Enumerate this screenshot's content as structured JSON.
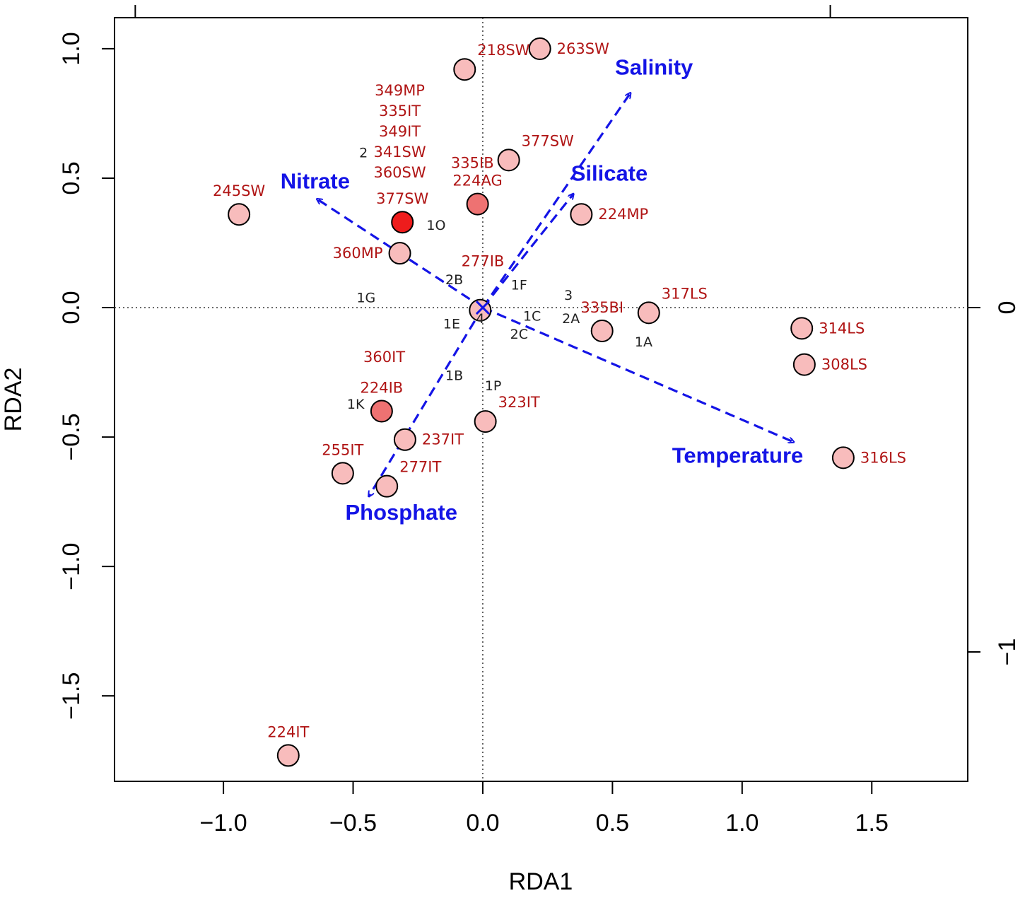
{
  "chart_data": {
    "type": "scatter",
    "subtype": "RDA triplot",
    "xlabel": "RDA1",
    "ylabel": "RDA2",
    "xlim": [
      -1.42,
      1.87
    ],
    "ylim": [
      -1.83,
      1.12
    ],
    "x_ticks": [
      -1.0,
      -0.5,
      0.0,
      0.5,
      1.0,
      1.5
    ],
    "x_tick_labels": [
      "−1.0",
      "−0.5",
      "0.0",
      "0.5",
      "1.0",
      "1.5"
    ],
    "y_ticks": [
      1.0,
      0.5,
      0.0,
      -0.5,
      -1.0,
      -1.5
    ],
    "y_tick_labels": [
      "1.0",
      "0.5",
      "0.0",
      "−0.5",
      "−1.0",
      "−1.5"
    ],
    "right_axis": {
      "ticks": [
        0.0,
        -1.33
      ],
      "tick_labels": [
        "0",
        "−1"
      ]
    },
    "top_axis_ticks": [
      -1.34,
      1.34
    ],
    "reference_lines": {
      "x": 0,
      "y": 0,
      "style": "dotted"
    },
    "origin_marker": "x",
    "sites": [
      {
        "label": "263SW",
        "x": 0.22,
        "y": 1.0,
        "fill": "#f8bcbc",
        "lab": "r"
      },
      {
        "label": "218SW",
        "x": -0.07,
        "y": 0.92,
        "fill": "#f8bcbc",
        "lab": "ur"
      },
      {
        "label": "377SW",
        "x": 0.1,
        "y": 0.57,
        "fill": "#f8bcbc",
        "lab": "ur"
      },
      {
        "label": "224AG",
        "x": -0.02,
        "y": 0.4,
        "fill": "#ee7272",
        "lab": "u"
      },
      {
        "label": "224MP",
        "x": 0.38,
        "y": 0.36,
        "fill": "#f8bcbc",
        "lab": "r"
      },
      {
        "label": "245SW",
        "x": -0.94,
        "y": 0.36,
        "fill": "#f8bcbc",
        "lab": "u"
      },
      {
        "label": "377SW",
        "x": -0.31,
        "y": 0.33,
        "fill": "#ee1c1c",
        "lab": "u"
      },
      {
        "label": "360MP",
        "x": -0.32,
        "y": 0.21,
        "fill": "#f8bcbc",
        "lab": "l"
      },
      {
        "label": "",
        "x": -0.01,
        "y": -0.01,
        "fill": "#f8bcbc",
        "lab": "n"
      },
      {
        "label": "317LS",
        "x": 0.64,
        "y": -0.02,
        "fill": "#f8bcbc",
        "lab": "ur"
      },
      {
        "label": "335BI",
        "x": 0.46,
        "y": -0.09,
        "fill": "#f8bcbc",
        "lab": "u"
      },
      {
        "label": "314LS",
        "x": 1.23,
        "y": -0.08,
        "fill": "#f8bcbc",
        "lab": "r"
      },
      {
        "label": "308LS",
        "x": 1.24,
        "y": -0.22,
        "fill": "#f8bcbc",
        "lab": "r"
      },
      {
        "label": "224IB",
        "x": -0.39,
        "y": -0.4,
        "fill": "#ee7272",
        "lab": "u"
      },
      {
        "label": "323IT",
        "x": 0.01,
        "y": -0.44,
        "fill": "#f8bcbc",
        "lab": "ur"
      },
      {
        "label": "237IT",
        "x": -0.3,
        "y": -0.51,
        "fill": "#f8bcbc",
        "lab": "r"
      },
      {
        "label": "316LS",
        "x": 1.39,
        "y": -0.58,
        "fill": "#f8bcbc",
        "lab": "r"
      },
      {
        "label": "255IT",
        "x": -0.54,
        "y": -0.64,
        "fill": "#f8bcbc",
        "lab": "u"
      },
      {
        "label": "277IT",
        "x": -0.37,
        "y": -0.69,
        "fill": "#f8bcbc",
        "lab": "ur"
      },
      {
        "label": "224IT",
        "x": -0.75,
        "y": -1.73,
        "fill": "#f8bcbc",
        "lab": "u"
      }
    ],
    "stacked_site_labels": {
      "x": -0.32,
      "y_top": 0.82,
      "labels": [
        "349MP",
        "335IT",
        "349IT",
        "341SW",
        "360SW"
      ]
    },
    "extra_site_labels": [
      {
        "label": "335IB",
        "x": -0.04,
        "y": 0.54
      },
      {
        "label": "277IB",
        "x": 0.0,
        "y": 0.16
      },
      {
        "label": "360IT",
        "x": -0.38,
        "y": -0.21
      }
    ],
    "species": [
      {
        "label": "2",
        "x": -0.46,
        "y": 0.58
      },
      {
        "label": "1O",
        "x": -0.18,
        "y": 0.3
      },
      {
        "label": "2B",
        "x": -0.11,
        "y": 0.09
      },
      {
        "label": "1F",
        "x": 0.14,
        "y": 0.07
      },
      {
        "label": "3",
        "x": 0.33,
        "y": 0.03
      },
      {
        "label": "1G",
        "x": -0.45,
        "y": 0.02
      },
      {
        "label": "1C",
        "x": 0.19,
        "y": -0.05
      },
      {
        "label": "2A",
        "x": 0.34,
        "y": -0.06
      },
      {
        "label": "4",
        "x": -0.01,
        "y": -0.06
      },
      {
        "label": "1E",
        "x": -0.12,
        "y": -0.08
      },
      {
        "label": "2C",
        "x": 0.14,
        "y": -0.12
      },
      {
        "label": "1A",
        "x": 0.62,
        "y": -0.15
      },
      {
        "label": "1B",
        "x": -0.11,
        "y": -0.28
      },
      {
        "label": "1P",
        "x": 0.04,
        "y": -0.32
      },
      {
        "label": "1K",
        "x": -0.49,
        "y": -0.39
      }
    ],
    "env_vectors": [
      {
        "label": "Salinity",
        "x": 0.57,
        "y": 0.83,
        "color": "#1414e6",
        "lab": "Salinity",
        "lx": 0.51,
        "ly": 0.9
      },
      {
        "label": "Silicate",
        "x": 0.35,
        "y": 0.44,
        "color": "#1414e6",
        "lx": 0.34,
        "ly": 0.49
      },
      {
        "label": "Nitrate",
        "x": -0.64,
        "y": 0.42,
        "color": "#1414e6",
        "lx": -0.78,
        "ly": 0.46
      },
      {
        "label": "Temperature",
        "x": 1.2,
        "y": -0.52,
        "color": "#1414e6",
        "lx": 0.73,
        "ly": -0.6
      },
      {
        "label": "Phosphate",
        "x": -0.44,
        "y": -0.73,
        "color": "#1414e6",
        "lx": -0.53,
        "ly": -0.82
      }
    ]
  }
}
